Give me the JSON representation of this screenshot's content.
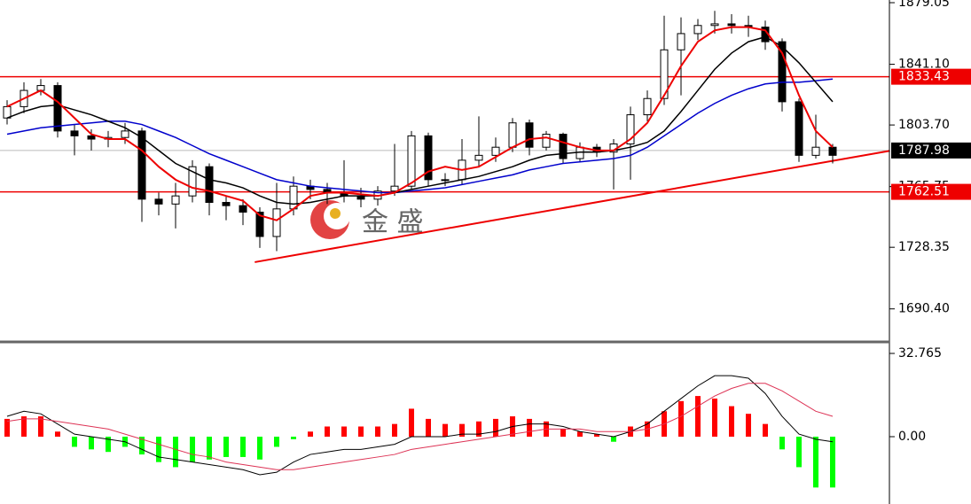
{
  "chart_data": [
    {
      "type": "candlestick",
      "open": [
        1808,
        1815,
        1825,
        1828,
        1800,
        1797,
        1795,
        1796,
        1800,
        1758,
        1755,
        1760,
        1778,
        1756,
        1754,
        1750,
        1735,
        1752,
        1766,
        1764,
        1762,
        1760,
        1758,
        1763,
        1766,
        1797,
        1770,
        1770,
        1782,
        1785,
        1790,
        1805,
        1790,
        1798,
        1783,
        1790,
        1787,
        1792,
        1810,
        1820,
        1850,
        1860,
        1865,
        1866,
        1865,
        1864,
        1855,
        1818,
        1785,
        1790
      ],
      "high": [
        1819,
        1830,
        1832,
        1830,
        1804,
        1801,
        1800,
        1805,
        1802,
        1762,
        1768,
        1782,
        1780,
        1760,
        1758,
        1753,
        1768,
        1772,
        1770,
        1768,
        1782,
        1765,
        1766,
        1792,
        1800,
        1799,
        1774,
        1795,
        1809,
        1796,
        1808,
        1807,
        1800,
        1799,
        1793,
        1792,
        1795,
        1815,
        1825,
        1871,
        1870,
        1869,
        1874,
        1872,
        1871,
        1868,
        1857,
        1820,
        1810,
        1792
      ],
      "low": [
        1804,
        1811,
        1822,
        1796,
        1785,
        1788,
        1790,
        1792,
        1744,
        1748,
        1740,
        1756,
        1748,
        1745,
        1742,
        1728,
        1726,
        1748,
        1758,
        1755,
        1756,
        1753,
        1754,
        1760,
        1764,
        1766,
        1766,
        1767,
        1778,
        1781,
        1787,
        1785,
        1788,
        1780,
        1781,
        1784,
        1764,
        1770,
        1806,
        1816,
        1822,
        1856,
        1860,
        1860,
        1858,
        1850,
        1812,
        1781,
        1783,
        1780
      ],
      "close": [
        1815,
        1825,
        1828,
        1800,
        1797,
        1795,
        1796,
        1800,
        1758,
        1755,
        1760,
        1778,
        1756,
        1754,
        1750,
        1735,
        1752,
        1766,
        1764,
        1762,
        1760,
        1758,
        1763,
        1766,
        1797,
        1770,
        1770,
        1782,
        1785,
        1790,
        1805,
        1790,
        1798,
        1783,
        1790,
        1787,
        1792,
        1810,
        1820,
        1850,
        1860,
        1865,
        1866,
        1865,
        1864,
        1855,
        1818,
        1785,
        1790,
        1785
      ],
      "series": [
        {
          "color": "#0000cc",
          "values": [
            1798,
            1800,
            1802,
            1803,
            1804,
            1805,
            1806,
            1806,
            1804,
            1800,
            1796,
            1791,
            1786,
            1782,
            1778,
            1774,
            1770,
            1768,
            1766,
            1765,
            1764,
            1763,
            1762,
            1762,
            1763,
            1764,
            1765,
            1767,
            1769,
            1771,
            1773,
            1776,
            1778,
            1780,
            1781,
            1782,
            1783,
            1785,
            1790,
            1797,
            1804,
            1811,
            1817,
            1822,
            1826,
            1829,
            1830,
            1830,
            1831,
            1832
          ]
        },
        {
          "color": "#000000",
          "values": [
            1808,
            1812,
            1815,
            1816,
            1813,
            1810,
            1806,
            1802,
            1796,
            1788,
            1780,
            1775,
            1770,
            1768,
            1765,
            1760,
            1756,
            1755,
            1756,
            1758,
            1760,
            1760,
            1760,
            1762,
            1764,
            1766,
            1768,
            1770,
            1772,
            1775,
            1778,
            1782,
            1785,
            1786,
            1787,
            1787,
            1788,
            1790,
            1793,
            1800,
            1812,
            1825,
            1838,
            1848,
            1855,
            1858,
            1852,
            1842,
            1830,
            1818
          ]
        },
        {
          "color": "#ee0000",
          "values": [
            1815,
            1820,
            1825,
            1818,
            1808,
            1798,
            1795,
            1795,
            1788,
            1778,
            1770,
            1765,
            1763,
            1760,
            1757,
            1748,
            1745,
            1752,
            1760,
            1762,
            1762,
            1761,
            1760,
            1762,
            1768,
            1775,
            1778,
            1776,
            1778,
            1784,
            1790,
            1795,
            1796,
            1793,
            1790,
            1788,
            1788,
            1795,
            1805,
            1822,
            1840,
            1855,
            1862,
            1864,
            1864,
            1862,
            1848,
            1822,
            1800,
            1790
          ]
        }
      ],
      "ylim": [
        1670.6,
        1880.7
      ],
      "yticks": [
        1879.05,
        {
          "value": 1841.1,
          "label": "1841.10"
        },
        {
          "value": 1803.7,
          "label": "1803.70"
        },
        1765.75,
        1728.35,
        {
          "value": 1690.4,
          "label": "1690.40"
        }
      ],
      "levels": [
        {
          "value": 1833.43,
          "color": "#ee0000"
        },
        {
          "value": 1787.98,
          "color": "#000000"
        },
        {
          "value": 1762.51,
          "color": "#ee0000"
        }
      ],
      "trendline": {
        "x": [
          14.7,
          52.4
        ],
        "y": [
          1719.2,
          1787.8
        ],
        "color": "#ee0000"
      },
      "watermark": "金 盛"
    },
    {
      "type": "macd",
      "values": [
        7,
        8,
        8,
        2,
        -4,
        -5,
        -6,
        -4,
        -7,
        -10,
        -12,
        -10,
        -9,
        -8,
        -8,
        -9,
        -4,
        -1,
        2,
        4,
        4,
        4,
        4,
        5,
        11,
        7,
        5,
        5,
        6,
        7,
        8,
        7,
        6,
        3,
        2,
        1,
        -2,
        4,
        6,
        10,
        14,
        16,
        15,
        12,
        9,
        5,
        -5,
        -12,
        -20,
        -20
      ],
      "positive_color": "#ff0000",
      "negative_color": "#00ff00",
      "series": [
        {
          "color": "#000000",
          "values": [
            8,
            10,
            9,
            5,
            1,
            0,
            -1,
            -2,
            -5,
            -8,
            -9,
            -10,
            -11,
            -12,
            -13,
            -15,
            -14,
            -10,
            -7,
            -6,
            -5,
            -5,
            -4,
            -3,
            0,
            0,
            0,
            1,
            1,
            2,
            4,
            5,
            5,
            4,
            2,
            1,
            0,
            2,
            5,
            10,
            15,
            20,
            24,
            24,
            23,
            17,
            8,
            1,
            -1,
            -2
          ]
        },
        {
          "color": "#dd3355",
          "values": [
            6,
            7,
            7,
            6,
            5,
            4,
            3,
            1,
            -1,
            -3,
            -5,
            -7,
            -8,
            -10,
            -11,
            -12,
            -13,
            -13,
            -12,
            -11,
            -10,
            -9,
            -8,
            -7,
            -5,
            -4,
            -3,
            -2,
            -1,
            0,
            1,
            2,
            3,
            3,
            3,
            2,
            2,
            2,
            3,
            5,
            8,
            12,
            16,
            19,
            21,
            21,
            18,
            14,
            10,
            8
          ]
        }
      ],
      "ylim": [
        -26.5,
        36.6
      ],
      "yticks": [
        32.765,
        {
          "value": 0,
          "label": "0.00"
        }
      ]
    }
  ]
}
